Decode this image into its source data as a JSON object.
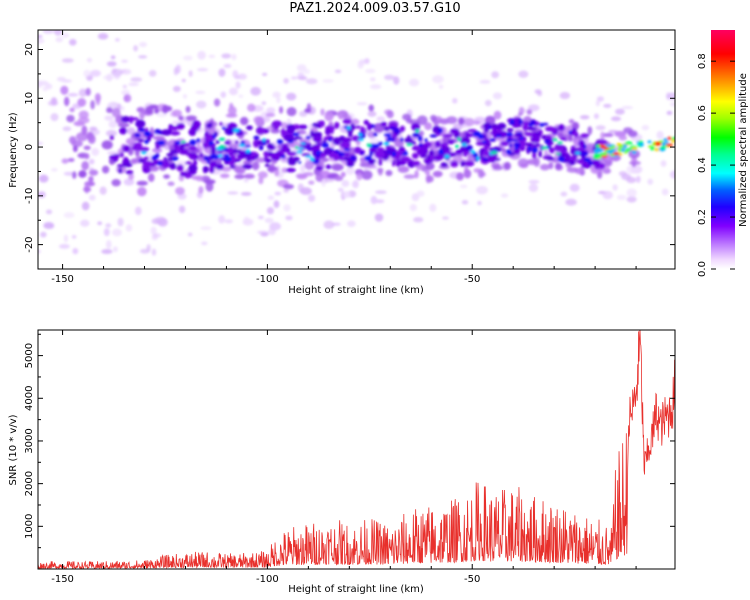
{
  "title": "PAZ1.2024.009.03.57.G10",
  "chart_data": [
    {
      "type": "heatmap",
      "xlabel": "Height of straight line (km)",
      "ylabel": "Frequency (Hz)",
      "xlim": [
        -156,
        -0.5
      ],
      "ylim": [
        -25,
        24
      ],
      "xticks": [
        -150,
        -100,
        -50
      ],
      "yticks": [
        -20,
        -10,
        0,
        10,
        20
      ],
      "colorbar": {
        "label": "Normalized spectral amplitude",
        "range": [
          0.0,
          0.92
        ],
        "ticks": [
          0.0,
          0.2,
          0.4,
          0.6,
          0.8
        ],
        "colors": [
          "#f0d8ff",
          "#c080ff",
          "#8000ff",
          "#4000ff",
          "#0000ff",
          "#0080ff",
          "#00ffff",
          "#00ff80",
          "#00ff00",
          "#80ff00",
          "#ffff00",
          "#ff8000",
          "#ff0000",
          "#ff0060"
        ]
      },
      "ridge": {
        "description": "energy centered near 0 Hz, spreading ±10 Hz at high altitude and narrowing to a bright tone near 0–1 Hz below -20 km",
        "centers": [
          [
            -150,
            2
          ],
          [
            -140,
            1
          ],
          [
            -130,
            0
          ],
          [
            -120,
            -1
          ],
          [
            -110,
            1
          ],
          [
            -100,
            0
          ],
          [
            -90,
            0
          ],
          [
            -80,
            1
          ],
          [
            -70,
            1
          ],
          [
            -60,
            0
          ],
          [
            -50,
            0
          ],
          [
            -40,
            2
          ],
          [
            -30,
            1
          ],
          [
            -20,
            -1
          ],
          [
            -10,
            0
          ],
          [
            -2,
            1
          ]
        ]
      }
    },
    {
      "type": "line",
      "xlabel": "Height of straight line (km)",
      "ylabel": "SNR (10 * v/v)",
      "xlim": [
        -156,
        -0.5
      ],
      "ylim": [
        0,
        5600
      ],
      "xticks": [
        -150,
        -100,
        -50
      ],
      "yticks": [
        1000,
        2000,
        3000,
        4000,
        5000
      ],
      "color": "#e8302c",
      "series": [
        {
          "x": [
            -156,
            -150,
            -145,
            -140,
            -135,
            -130,
            -125,
            -120,
            -115,
            -110,
            -105,
            -100,
            -98,
            -95,
            -90,
            -85,
            -80,
            -75,
            -70,
            -65,
            -60,
            -55,
            -50,
            -48,
            -45,
            -40,
            -35,
            -30,
            -25,
            -20,
            -16,
            -15,
            -12,
            -10,
            -9,
            -8,
            -6,
            -5,
            -4,
            -3,
            -2,
            -1,
            -0.5
          ],
          "y": [
            150,
            180,
            160,
            170,
            180,
            200,
            300,
            350,
            380,
            330,
            350,
            400,
            700,
            900,
            1000,
            1100,
            1000,
            1100,
            1000,
            1300,
            1400,
            1500,
            1800,
            2000,
            1700,
            1800,
            1600,
            1500,
            1300,
            1100,
            900,
            2200,
            3500,
            4300,
            5600,
            2500,
            3300,
            3900,
            3500,
            3700,
            3800,
            4100,
            4700
          ]
        }
      ]
    }
  ]
}
